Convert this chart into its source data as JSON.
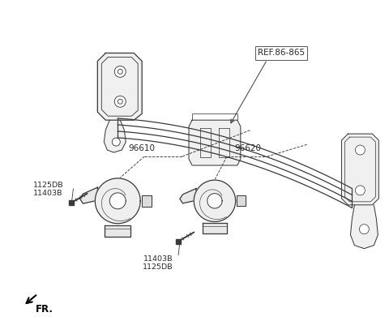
{
  "background_color": "#ffffff",
  "line_color": "#3a3a3a",
  "text_color": "#2a2a2a",
  "fig_width": 4.8,
  "fig_height": 3.96,
  "dpi": 100,
  "labels": {
    "ref": "REF.86-865",
    "part1": "96610",
    "part2": "96620",
    "bolt1a": "1125DB",
    "bolt1b": "11403B",
    "bolt2a": "11403B",
    "bolt2b": "1125DB",
    "fr": "FR."
  }
}
